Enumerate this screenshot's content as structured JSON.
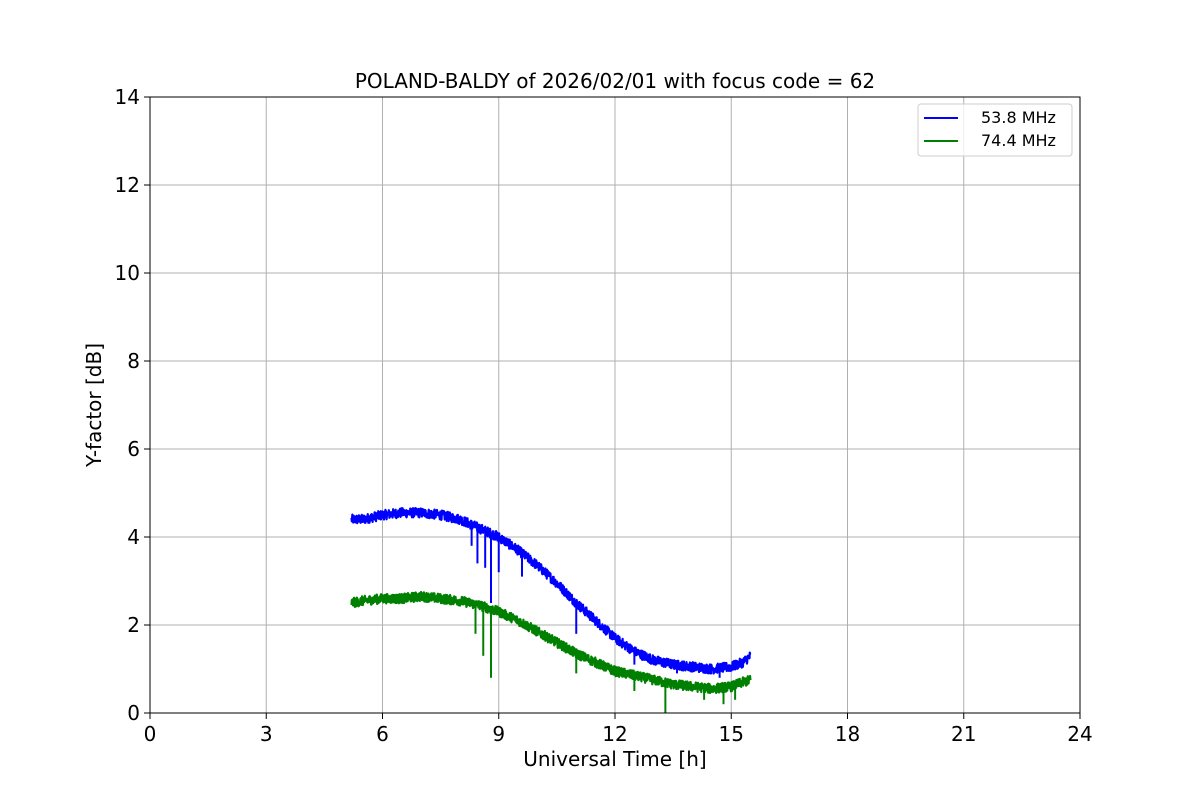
{
  "chart_data": {
    "type": "line",
    "title": "POLAND-BALDY of 2026/02/01 with focus code = 62",
    "xlabel": "Universal Time [h]",
    "ylabel": "Y-factor [dB]",
    "xlim": [
      0,
      24
    ],
    "ylim": [
      0,
      14
    ],
    "xticks": [
      0,
      3,
      6,
      9,
      12,
      15,
      18,
      21,
      24
    ],
    "yticks": [
      0,
      2,
      4,
      6,
      8,
      10,
      12,
      14
    ],
    "xtick_labels": [
      "0",
      "3",
      "6",
      "9",
      "12",
      "15",
      "18",
      "21",
      "24"
    ],
    "ytick_labels": [
      "0",
      "2",
      "4",
      "6",
      "8",
      "10",
      "12",
      "14"
    ],
    "grid": true,
    "legend_position": "top-right",
    "series": [
      {
        "name": "53.8 MHz",
        "color": "#0000ff",
        "x": [
          5.2,
          5.5,
          6.0,
          6.5,
          7.0,
          7.5,
          8.0,
          8.5,
          9.0,
          9.5,
          10.0,
          10.5,
          11.0,
          11.5,
          12.0,
          12.5,
          13.0,
          13.5,
          14.0,
          14.5,
          15.0,
          15.3,
          15.5
        ],
        "y": [
          4.4,
          4.4,
          4.5,
          4.55,
          4.55,
          4.5,
          4.4,
          4.2,
          4.0,
          3.7,
          3.35,
          2.95,
          2.5,
          2.1,
          1.7,
          1.4,
          1.2,
          1.1,
          1.05,
          1.0,
          1.05,
          1.15,
          1.3
        ],
        "dips": [
          [
            8.3,
            3.8
          ],
          [
            8.45,
            3.4
          ],
          [
            8.65,
            3.3
          ],
          [
            8.8,
            2.5
          ],
          [
            9.0,
            3.2
          ],
          [
            9.6,
            3.1
          ],
          [
            11.0,
            1.8
          ],
          [
            12.5,
            1.1
          ],
          [
            13.6,
            0.9
          ],
          [
            14.7,
            0.8
          ]
        ]
      },
      {
        "name": "74.4 MHz",
        "color": "#008000",
        "x": [
          5.2,
          5.5,
          6.0,
          6.5,
          7.0,
          7.5,
          8.0,
          8.5,
          9.0,
          9.5,
          10.0,
          10.5,
          11.0,
          11.5,
          12.0,
          12.5,
          13.0,
          13.5,
          14.0,
          14.5,
          15.0,
          15.3,
          15.5
        ],
        "y": [
          2.5,
          2.55,
          2.6,
          2.6,
          2.65,
          2.6,
          2.55,
          2.45,
          2.3,
          2.1,
          1.85,
          1.6,
          1.35,
          1.15,
          0.95,
          0.85,
          0.75,
          0.65,
          0.6,
          0.55,
          0.6,
          0.7,
          0.75
        ],
        "dips": [
          [
            8.4,
            1.8
          ],
          [
            8.6,
            1.3
          ],
          [
            8.8,
            0.8
          ],
          [
            11.0,
            0.9
          ],
          [
            12.5,
            0.5
          ],
          [
            13.3,
            0.0
          ],
          [
            14.3,
            0.3
          ],
          [
            14.8,
            0.2
          ],
          [
            15.1,
            0.3
          ]
        ]
      }
    ]
  }
}
